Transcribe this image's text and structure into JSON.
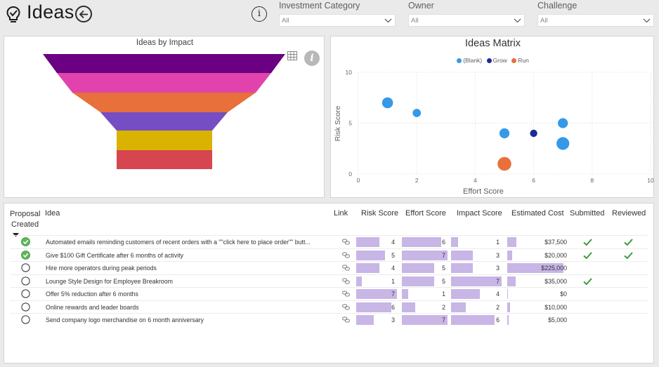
{
  "header": {
    "title": "Ideas",
    "info_glyph": "i",
    "icons": {
      "bulb": "lightbulb-check-icon",
      "back": "arrow-left-circle-icon",
      "info": "info-circle-icon"
    }
  },
  "filters": [
    {
      "label": "Investment Category",
      "value": "All"
    },
    {
      "label": "Owner",
      "value": "All"
    },
    {
      "label": "Challenge",
      "value": "All"
    }
  ],
  "funnel": {
    "title": "Ideas by Impact",
    "info_glyph": "i",
    "colors": [
      "#6b0082",
      "#e044ac",
      "#e8703a",
      "#744ec2",
      "#d9b300",
      "#d64550"
    ]
  },
  "matrix": {
    "title": "Ideas Matrix",
    "legend": [
      {
        "label": "(Blank)",
        "color": "#3599e8"
      },
      {
        "label": "Grow",
        "color": "#1d2a99"
      },
      {
        "label": "Run",
        "color": "#e8703a"
      }
    ]
  },
  "chart_data": {
    "type": "scatter",
    "title": "Ideas Matrix",
    "xlabel": "Effort Score",
    "ylabel": "Risk Score",
    "xlim": [
      0,
      10
    ],
    "ylim": [
      0,
      10
    ],
    "x_ticks": [
      "0",
      "2",
      "4",
      "6",
      "8",
      "10"
    ],
    "y_ticks": [
      "0",
      "5",
      "10"
    ],
    "grid": true,
    "legend_position": "top-center",
    "series": [
      {
        "name": "(Blank)",
        "color": "#3599e8",
        "points": [
          {
            "x": 1,
            "y": 7,
            "size": 1.2
          },
          {
            "x": 2,
            "y": 6,
            "size": 0.9
          },
          {
            "x": 5,
            "y": 4,
            "size": 1.1
          },
          {
            "x": 7,
            "y": 5,
            "size": 1.1
          },
          {
            "x": 7,
            "y": 3,
            "size": 1.4
          }
        ]
      },
      {
        "name": "Grow",
        "color": "#1d2a99",
        "points": [
          {
            "x": 6,
            "y": 4,
            "size": 0.8
          }
        ]
      },
      {
        "name": "Run",
        "color": "#e8703a",
        "points": [
          {
            "x": 5,
            "y": 1,
            "size": 1.5
          }
        ]
      }
    ]
  },
  "table": {
    "columns": {
      "proposal_line1": "Proposal",
      "proposal_line2": "Created",
      "idea": "Idea",
      "link": "Link",
      "risk": "Risk Score",
      "effort": "Effort Score",
      "impact": "Impact Score",
      "cost": "Estimated Cost",
      "submitted": "Submitted",
      "reviewed": "Reviewed"
    },
    "bar_color": "#c8b6e6",
    "rows": [
      {
        "created": true,
        "idea": "Automated emails reminding customers of recent orders with a \"\"click here to place order\"\" butt...",
        "risk": "4",
        "effort": "6",
        "impact": "1",
        "cost": "$37,500",
        "cost_value": 37500,
        "submitted": true,
        "reviewed": true
      },
      {
        "created": true,
        "idea": "Give $100 Gift Certificate after 6 months of activity",
        "risk": "5",
        "effort": "7",
        "impact": "3",
        "cost": "$20,000",
        "cost_value": 20000,
        "submitted": true,
        "reviewed": true
      },
      {
        "created": false,
        "idea": "Hire more operators during peak periods",
        "risk": "4",
        "effort": "5",
        "impact": "3",
        "cost": "$225,000",
        "cost_value": 225000,
        "submitted": false,
        "reviewed": false
      },
      {
        "created": false,
        "idea": "Lounge Style Design for Employee Breakroom",
        "risk": "1",
        "effort": "5",
        "impact": "7",
        "cost": "$35,000",
        "cost_value": 35000,
        "submitted": true,
        "reviewed": false
      },
      {
        "created": false,
        "idea": "Offer 5% reduction after 6 months",
        "risk": "7",
        "effort": "1",
        "impact": "4",
        "cost": "$0",
        "cost_value": 0,
        "submitted": false,
        "reviewed": false
      },
      {
        "created": false,
        "idea": "Online rewards and leader boards",
        "risk": "6",
        "effort": "2",
        "impact": "2",
        "cost": "$10,000",
        "cost_value": 10000,
        "submitted": false,
        "reviewed": false
      },
      {
        "created": false,
        "idea": "Send company logo merchandise on 6 month anniversary",
        "risk": "3",
        "effort": "7",
        "impact": "6",
        "cost": "$5,000",
        "cost_value": 5000,
        "submitted": false,
        "reviewed": false
      }
    ]
  }
}
